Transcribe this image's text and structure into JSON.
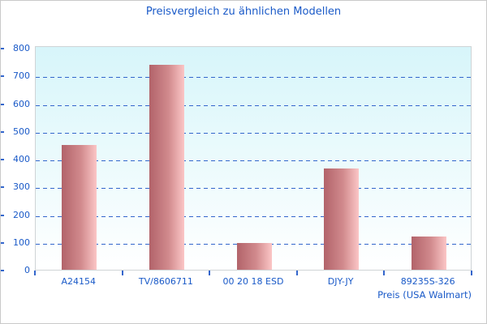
{
  "chart_data": {
    "type": "bar",
    "title": "Preisvergleich zu ähnlichen Modellen",
    "categories": [
      "A24154",
      "TV/8606711",
      "00 20 18 ESD",
      "DJY-JY",
      "89235S-326"
    ],
    "values": [
      450,
      740,
      95,
      365,
      120
    ],
    "xlabel": "Preis (USA Walmart)",
    "ylabel": "",
    "ylim": [
      0,
      800
    ],
    "y_ticks": [
      0,
      100,
      200,
      300,
      400,
      500,
      600,
      700,
      800
    ],
    "grid": "horizontal-dashed",
    "legend": "none",
    "colors": {
      "text": "#1a5ac8",
      "grid": "#3366cc",
      "bar_dark": "#b2636a",
      "bar_light": "#fbc6c6",
      "plot_bg_top": "#d7f5fa",
      "plot_bg_bottom": "#ffffff",
      "plot_border": "#cfd4d6",
      "frame_border": "#c9c9c9"
    }
  }
}
